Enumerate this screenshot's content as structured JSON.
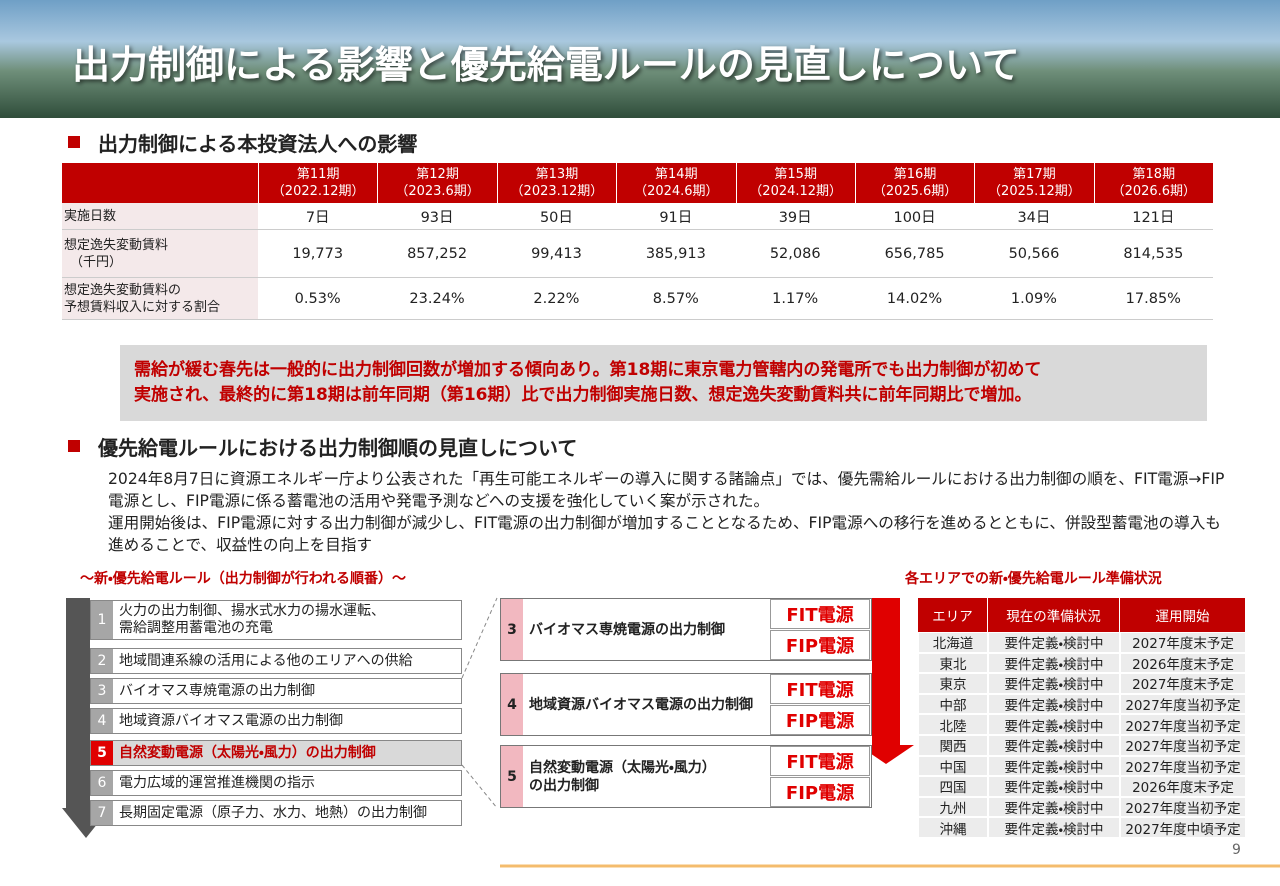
{
  "header": {
    "title": "出力制御による影響と優先給電ルールの見直しについて"
  },
  "impact": {
    "heading": "出力制御による本投資法人への影響",
    "table": {
      "columns": [
        {
          "period": "第11期",
          "term": "（2022.12期）"
        },
        {
          "period": "第12期",
          "term": "（2023.6期）"
        },
        {
          "period": "第13期",
          "term": "（2023.12期）"
        },
        {
          "period": "第14期",
          "term": "（2024.6期）"
        },
        {
          "period": "第15期",
          "term": "（2024.12期）"
        },
        {
          "period": "第16期",
          "term": "（2025.6期）"
        },
        {
          "period": "第17期",
          "term": "（2025.12期）"
        },
        {
          "period": "第18期",
          "term": "（2026.6期）"
        }
      ],
      "rows": [
        {
          "label": [
            "実施日数"
          ],
          "values": [
            "7日",
            "93日",
            "50日",
            "91日",
            "39日",
            "100日",
            "34日",
            "121日"
          ]
        },
        {
          "label": [
            "想定逸失変動賃料",
            "（千円）"
          ],
          "values": [
            "19,773",
            "857,252",
            "99,413",
            "385,913",
            "52,086",
            "656,785",
            "50,566",
            "814,535"
          ]
        },
        {
          "label": [
            "想定逸失変動賃料の",
            "予想賃料収入に対する割合"
          ],
          "values": [
            "0.53%",
            "23.24%",
            "2.22%",
            "8.57%",
            "1.17%",
            "14.02%",
            "1.09%",
            "17.85%"
          ]
        }
      ]
    },
    "callout": [
      "需給が緩む春先は一般的に出力制御回数が増加する傾向あり。第18期に東京電力管轄内の発電所でも出力制御が初めて",
      "実施され、最終的に第18期は前年同期（第16期）比で出力制御実施日数、想定逸失変動賃料共に前年同期比で増加。"
    ]
  },
  "rule": {
    "heading": "優先給電ルールにおける出力制御順の見直しについて",
    "paragraphs": [
      "2024年8月7日に資源エネルギー庁より公表された「再生可能エネルギーの導入に関する諸論点」では、優先需給ルールにおける出力制御の順を、FIT電源→FIP電源とし、FIP電源に係る蓄電池の活用や発電予測などへの支援を強化していく案が示された。",
      "運用開始後は、FIP電源に対する出力制御が減少し、FIT電源の出力制御が増加することとなるため、FIP電源への移行を進めるとともに、併設型蓄電池の導入も進めることで、収益性の向上を目指す"
    ],
    "order_title": "～新・優先給電ルール（出力制御が行われる順番）～",
    "order": [
      {
        "no": 1,
        "text": [
          "火力の出力制御、揚水式水力の揚水運転、",
          "需給調整用蓄電池の充電"
        ]
      },
      {
        "no": 2,
        "text": [
          "地域間連系線の活用による他のエリアへの供給"
        ]
      },
      {
        "no": 3,
        "text": [
          "バイオマス専焼電源の出力制御"
        ]
      },
      {
        "no": 4,
        "text": [
          "地域資源バイオマス電源の出力制御"
        ]
      },
      {
        "no": 5,
        "text": [
          "自然変動電源（太陽光・風力）の出力制御"
        ]
      },
      {
        "no": 6,
        "text": [
          "電力広域的運営推進機関の指示"
        ]
      },
      {
        "no": 7,
        "text": [
          "長期固定電源（原子力、水力、地熱）の出力制御"
        ]
      }
    ],
    "detail": [
      {
        "no": 3,
        "text": [
          "バイオマス専焼電源の出力制御"
        ],
        "fit": "FIT電源",
        "fip": "FIP電源"
      },
      {
        "no": 4,
        "text": [
          "地域資源バイオマス電源の出力制御"
        ],
        "fit": "FIT電源",
        "fip": "FIP電源"
      },
      {
        "no": 5,
        "text": [
          "自然変動電源（太陽光・風力）",
          "の出力制御"
        ],
        "fit": "FIT電源",
        "fip": "FIP電源"
      }
    ],
    "status_title": "各エリアでの新・優先給電ルール準備状況",
    "status": {
      "header": [
        "エリア",
        "現在の準備状況",
        "運用開始"
      ],
      "rows": [
        [
          "北海道",
          "要件定義・検討中",
          "2027年度末予定"
        ],
        [
          "東北",
          "要件定義・検討中",
          "2026年度末予定"
        ],
        [
          "東京",
          "要件定義・検討中",
          "2027年度末予定"
        ],
        [
          "中部",
          "要件定義・検討中",
          "2027年度当初予定"
        ],
        [
          "北陸",
          "要件定義・検討中",
          "2027年度当初予定"
        ],
        [
          "関西",
          "要件定義・検討中",
          "2027年度当初予定"
        ],
        [
          "中国",
          "要件定義・検討中",
          "2027年度当初予定"
        ],
        [
          "四国",
          "要件定義・検討中",
          "2026年度末予定"
        ],
        [
          "九州",
          "要件定義・検討中",
          "2027年度当初予定"
        ],
        [
          "沖縄",
          "要件定義・検討中",
          "2027年度中頃予定"
        ]
      ]
    }
  },
  "page_number": 9
}
